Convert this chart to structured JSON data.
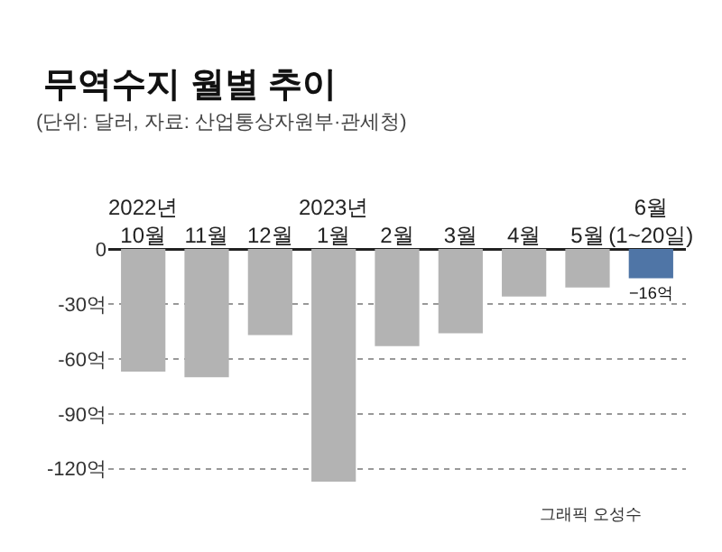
{
  "chart_data": {
    "type": "bar",
    "title": "무역수지 월별 추이",
    "subtitle": "(단위: 달러, 자료: 산업통상자원부·관세청)",
    "categories": [
      "2022년\n10월",
      "11월",
      "12월",
      "2023년\n1월",
      "2월",
      "3월",
      "4월",
      "5월",
      "6월\n(1~20일)"
    ],
    "values": [
      -67,
      -70,
      -47,
      -127,
      -53,
      -46,
      -26,
      -21,
      -16
    ],
    "colors": [
      "#b3b3b3",
      "#b3b3b3",
      "#b3b3b3",
      "#b3b3b3",
      "#b3b3b3",
      "#b3b3b3",
      "#b3b3b3",
      "#b3b3b3",
      "#4f75a6"
    ],
    "value_labels": [
      null,
      null,
      null,
      null,
      null,
      null,
      null,
      null,
      "−16억"
    ],
    "ylim": [
      -128,
      0
    ],
    "yticks": [
      0,
      {
        "value": -30,
        "label": "-30억"
      },
      {
        "value": -60,
        "label": "-60억"
      },
      {
        "value": -90,
        "label": "-90억"
      },
      {
        "value": -120,
        "label": "-120억"
      }
    ],
    "grid": "y",
    "annotations": [
      "그래픽 오성수"
    ]
  }
}
